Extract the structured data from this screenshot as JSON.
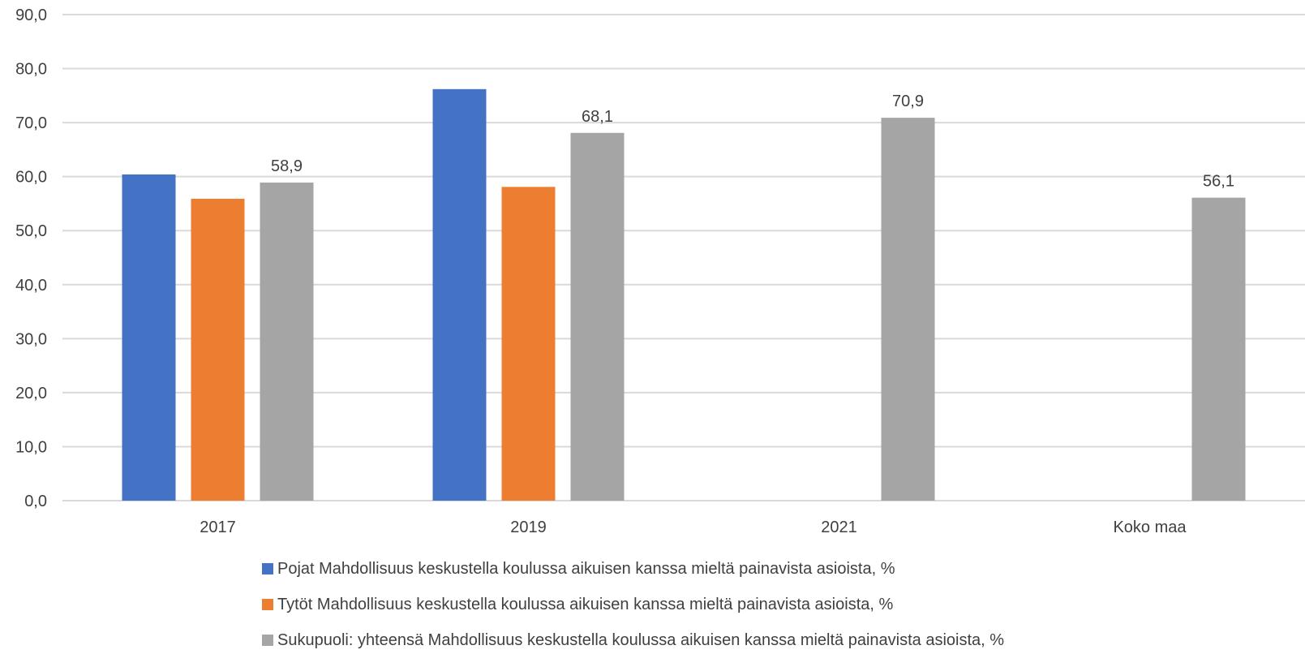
{
  "chart_data": {
    "type": "bar",
    "categories": [
      "2017",
      "2019",
      "2021",
      "Koko maa"
    ],
    "series": [
      {
        "name": "Pojat Mahdollisuus keskustella koulussa aikuisen kanssa mieltä painavista asioista, %",
        "color": "#4472C4",
        "values": [
          60.4,
          76.2,
          null,
          null
        ],
        "labels": [
          null,
          null,
          null,
          null
        ]
      },
      {
        "name": "Tytöt Mahdollisuus keskustella koulussa aikuisen kanssa mieltä painavista asioista, %",
        "color": "#ED7D31",
        "values": [
          55.9,
          58.1,
          null,
          null
        ],
        "labels": [
          null,
          null,
          null,
          null
        ]
      },
      {
        "name": "Sukupuoli: yhteensä Mahdollisuus keskustella koulussa aikuisen kanssa mieltä painavista asioista, %",
        "color": "#A5A5A5",
        "values": [
          58.9,
          68.1,
          70.9,
          56.1
        ],
        "labels": [
          "58,9",
          "68,1",
          "70,9",
          "56,1"
        ]
      }
    ],
    "yticks": [
      "0,0",
      "10,0",
      "20,0",
      "30,0",
      "40,0",
      "50,0",
      "60,0",
      "70,0",
      "80,0",
      "90,0"
    ],
    "ylim": [
      0,
      90
    ],
    "grid": true,
    "legend_position": "bottom"
  }
}
